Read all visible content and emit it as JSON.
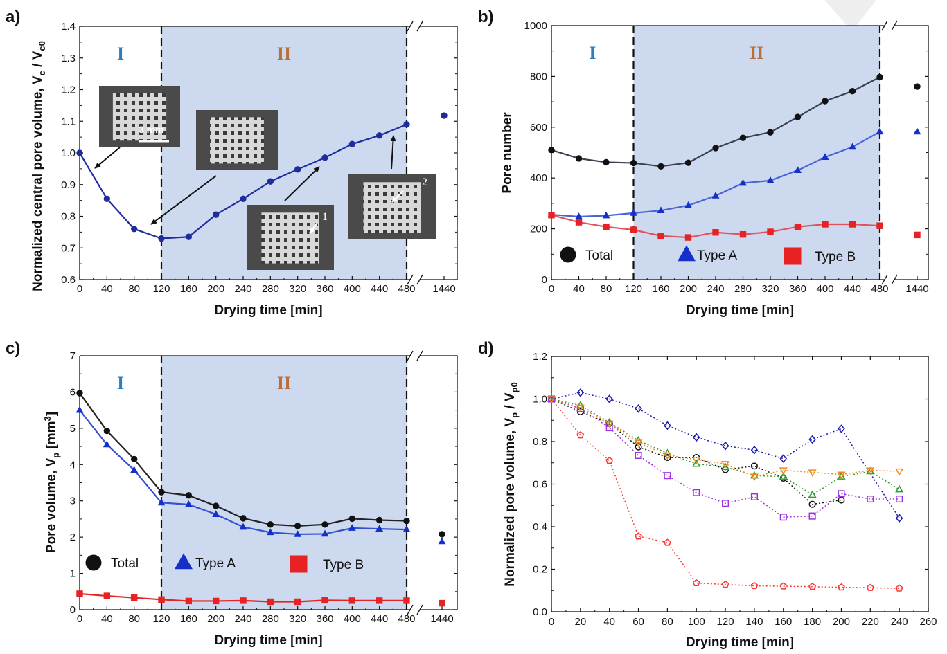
{
  "chart_data": [
    {
      "id": "a",
      "type": "line",
      "panel_label": "a)",
      "xlabel": "Drying time [min]",
      "ylabel_main": "Normalized central pore volume, V",
      "ylabel_sub1": "c",
      "ylabel_mid": " / V",
      "ylabel_sub2": "c0",
      "x_ticks": [
        "0",
        "40",
        "80",
        "120",
        "160",
        "200",
        "240",
        "280",
        "320",
        "360",
        "400",
        "440",
        "480",
        "1440"
      ],
      "y_ticks": [
        "0.6",
        "0.7",
        "0.8",
        "0.9",
        "1.0",
        "1.1",
        "1.2",
        "1.3",
        "1.4"
      ],
      "ylim": [
        0.6,
        1.4
      ],
      "xlim": [
        0,
        480
      ],
      "broken_x_axis": true,
      "regions": [
        {
          "label": "I",
          "from": 0,
          "to": 120
        },
        {
          "label": "II",
          "from": 120,
          "to": 480,
          "shaded": true
        }
      ],
      "series": [
        {
          "color": "#1f2d9c",
          "marker": "circle",
          "x": [
            0,
            40,
            80,
            120,
            160,
            200,
            240,
            280,
            320,
            360,
            400,
            440,
            480
          ],
          "values": [
            1.0,
            0.855,
            0.76,
            0.73,
            0.735,
            0.805,
            0.855,
            0.91,
            0.948,
            0.985,
            1.028,
            1.055,
            1.09
          ],
          "after_break": {
            "x": "1440",
            "value": 1.118
          }
        }
      ],
      "annotations": [
        "3 mm",
        "1",
        "2"
      ]
    },
    {
      "id": "b",
      "type": "line",
      "panel_label": "b)",
      "xlabel": "Drying time [min]",
      "ylabel": "Pore number",
      "x_ticks": [
        "0",
        "40",
        "80",
        "120",
        "160",
        "200",
        "240",
        "280",
        "320",
        "360",
        "400",
        "440",
        "480",
        "1440"
      ],
      "y_ticks": [
        "0",
        "200",
        "400",
        "600",
        "800",
        "1000"
      ],
      "ylim": [
        0,
        1000
      ],
      "xlim": [
        0,
        480
      ],
      "broken_x_axis": true,
      "regions": [
        {
          "label": "I",
          "from": 0,
          "to": 120
        },
        {
          "label": "II",
          "from": 120,
          "to": 480,
          "shaded": true
        }
      ],
      "series": [
        {
          "name": "Total",
          "color": "#111111",
          "line_color": "#3a3f52",
          "marker": "circle",
          "x": [
            0,
            40,
            80,
            120,
            160,
            200,
            240,
            280,
            320,
            360,
            400,
            440,
            480
          ],
          "values": [
            510,
            477,
            462,
            459,
            446,
            460,
            518,
            558,
            580,
            640,
            703,
            742,
            797
          ],
          "after_break": {
            "x": "1440",
            "value": 760
          }
        },
        {
          "name": "Type A",
          "color": "#1530c8",
          "line_color": "#4a63d6",
          "marker": "triangle",
          "x": [
            0,
            40,
            80,
            120,
            160,
            200,
            240,
            280,
            320,
            360,
            400,
            440,
            480
          ],
          "values": [
            256,
            248,
            252,
            262,
            272,
            292,
            330,
            380,
            390,
            430,
            482,
            522,
            582
          ],
          "after_break": {
            "x": "1440",
            "value": 582
          }
        },
        {
          "name": "Type B",
          "color": "#e62222",
          "line_color": "#e0535c",
          "marker": "square",
          "x": [
            0,
            40,
            80,
            120,
            160,
            200,
            240,
            280,
            320,
            360,
            400,
            440,
            480
          ],
          "values": [
            254,
            226,
            208,
            196,
            172,
            166,
            186,
            178,
            188,
            208,
            218,
            218,
            212
          ],
          "after_break": {
            "x": "1440",
            "value": 176
          }
        }
      ]
    },
    {
      "id": "c",
      "type": "line",
      "panel_label": "c)",
      "xlabel": "Drying time [min]",
      "ylabel_main": "Pore volume, V",
      "ylabel_sub1": "p",
      "ylabel_unit": " [mm",
      "ylabel_sup": "3",
      "ylabel_end": "]",
      "x_ticks": [
        "0",
        "40",
        "80",
        "120",
        "160",
        "200",
        "240",
        "280",
        "320",
        "360",
        "400",
        "440",
        "480",
        "1440"
      ],
      "y_ticks": [
        "0",
        "1",
        "2",
        "3",
        "4",
        "5",
        "6",
        "7"
      ],
      "ylim": [
        0,
        7
      ],
      "xlim": [
        0,
        480
      ],
      "broken_x_axis": true,
      "regions": [
        {
          "label": "I",
          "from": 0,
          "to": 120
        },
        {
          "label": "II",
          "from": 120,
          "to": 480,
          "shaded": true
        }
      ],
      "series": [
        {
          "name": "Total",
          "color": "#111111",
          "line_color": "#222222",
          "marker": "circle",
          "x": [
            0,
            40,
            80,
            120,
            160,
            200,
            240,
            280,
            320,
            360,
            400,
            440,
            480
          ],
          "values": [
            5.97,
            4.93,
            4.15,
            3.24,
            3.15,
            2.86,
            2.52,
            2.35,
            2.31,
            2.35,
            2.51,
            2.47,
            2.45
          ],
          "after_break": {
            "x": "1440",
            "value": 2.08
          }
        },
        {
          "name": "Type A",
          "color": "#1530c8",
          "line_color": "#3550d0",
          "marker": "triangle",
          "x": [
            0,
            40,
            80,
            120,
            160,
            200,
            240,
            280,
            320,
            360,
            400,
            440,
            480
          ],
          "values": [
            5.5,
            4.55,
            3.85,
            2.95,
            2.9,
            2.63,
            2.28,
            2.13,
            2.08,
            2.09,
            2.25,
            2.23,
            2.21
          ],
          "after_break": {
            "x": "1440",
            "value": 1.88
          }
        },
        {
          "name": "Type B",
          "color": "#e62222",
          "line_color": "#e62222",
          "marker": "square",
          "x": [
            0,
            40,
            80,
            120,
            160,
            200,
            240,
            280,
            320,
            360,
            400,
            440,
            480
          ],
          "values": [
            0.44,
            0.38,
            0.33,
            0.28,
            0.24,
            0.24,
            0.25,
            0.22,
            0.22,
            0.26,
            0.25,
            0.25,
            0.25
          ],
          "after_break": {
            "x": "1440",
            "value": 0.18
          }
        }
      ]
    },
    {
      "id": "d",
      "type": "scatter",
      "panel_label": "d)",
      "xlabel": "Drying time [min]",
      "ylabel_main": "Normalized pore volume, V",
      "ylabel_sub1": "p",
      "ylabel_mid": " / V",
      "ylabel_sub2": "p0",
      "x_ticks": [
        "0",
        "20",
        "40",
        "60",
        "80",
        "100",
        "120",
        "140",
        "160",
        "180",
        "200",
        "220",
        "240",
        "260"
      ],
      "y_ticks": [
        "0.0",
        "0.2",
        "0.4",
        "0.6",
        "0.8",
        "1.0",
        "1.2"
      ],
      "ylim": [
        0,
        1.2
      ],
      "xlim": [
        0,
        260
      ],
      "series": [
        {
          "color": "#111111",
          "marker": "circle",
          "x": [
            0,
            20,
            40,
            60,
            80,
            100,
            120,
            140,
            160,
            180,
            200
          ],
          "values": [
            1.0,
            0.94,
            0.885,
            0.775,
            0.725,
            0.725,
            0.668,
            0.685,
            0.628,
            0.505,
            0.525
          ]
        },
        {
          "color": "#1a1aa8",
          "marker": "diamond",
          "x": [
            0,
            20,
            40,
            60,
            80,
            100,
            120,
            140,
            160,
            180,
            200,
            240
          ],
          "values": [
            1.0,
            1.03,
            1.0,
            0.955,
            0.875,
            0.82,
            0.78,
            0.76,
            0.72,
            0.81,
            0.86,
            0.44
          ]
        },
        {
          "color": "#ff3333",
          "marker": "pentagon",
          "x": [
            0,
            20,
            40,
            60,
            80,
            100,
            120,
            140,
            160,
            180,
            200,
            220,
            240
          ],
          "values": [
            1.0,
            0.83,
            0.71,
            0.355,
            0.325,
            0.135,
            0.128,
            0.122,
            0.12,
            0.118,
            0.115,
            0.113,
            0.11
          ]
        },
        {
          "color": "#2f9a2f",
          "marker": "triangle",
          "x": [
            0,
            20,
            40,
            60,
            80,
            100,
            120,
            140,
            160,
            180,
            200,
            220,
            240
          ],
          "values": [
            1.0,
            0.97,
            0.89,
            0.805,
            0.745,
            0.695,
            0.68,
            0.64,
            0.635,
            0.55,
            0.635,
            0.66,
            0.575
          ]
        },
        {
          "color": "#9b30e0",
          "marker": "square",
          "x": [
            0,
            20,
            40,
            60,
            80,
            100,
            120,
            140,
            160,
            180,
            200,
            220,
            240
          ],
          "values": [
            1.0,
            0.955,
            0.865,
            0.735,
            0.64,
            0.56,
            0.51,
            0.54,
            0.445,
            0.45,
            0.555,
            0.53,
            0.53
          ]
        },
        {
          "color": "#f08a1c",
          "marker": "triangle-down",
          "x": [
            0,
            20,
            40,
            60,
            80,
            100,
            120,
            140,
            160,
            180,
            200,
            220,
            240
          ],
          "values": [
            1.0,
            0.96,
            0.885,
            0.795,
            0.735,
            0.715,
            0.695,
            0.635,
            0.665,
            0.655,
            0.645,
            0.665,
            0.66
          ]
        }
      ]
    }
  ]
}
